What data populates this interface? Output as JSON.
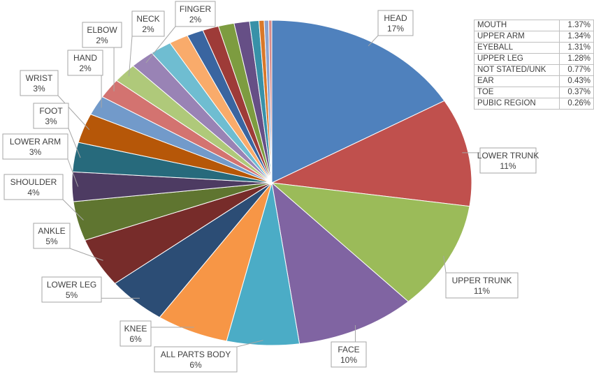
{
  "chart_data": {
    "type": "pie",
    "slices": [
      {
        "label": "HEAD",
        "value": 17,
        "value_text": "17%",
        "color": "#4f81bd"
      },
      {
        "label": "LOWER TRUNK",
        "value": 11,
        "value_text": "11%",
        "color": "#c0504d"
      },
      {
        "label": "UPPER TRUNK",
        "value": 11,
        "value_text": "11%",
        "color": "#9bbb59"
      },
      {
        "label": "FACE",
        "value": 10,
        "value_text": "10%",
        "color": "#8064a2"
      },
      {
        "label": "ALL PARTS BODY",
        "value": 6,
        "value_text": "6%",
        "color": "#4bacc6"
      },
      {
        "label": "KNEE",
        "value": 6,
        "value_text": "6%",
        "color": "#f79646"
      },
      {
        "label": "LOWER LEG",
        "value": 5,
        "value_text": "5%",
        "color": "#2c4d75"
      },
      {
        "label": "ANKLE",
        "value": 5,
        "value_text": "5%",
        "color": "#772c2a"
      },
      {
        "label": "SHOULDER",
        "value": 4,
        "value_text": "4%",
        "color": "#5f7530"
      },
      {
        "label": "LOWER ARM",
        "value": 3,
        "value_text": "3%",
        "color": "#4d3b62"
      },
      {
        "label": "FOOT",
        "value": 3,
        "value_text": "3%",
        "color": "#276a7c"
      },
      {
        "label": "WRIST",
        "value": 3,
        "value_text": "3%",
        "color": "#b65708"
      },
      {
        "label": "HAND",
        "value": 2,
        "value_text": "2%",
        "color": "#729aca"
      },
      {
        "label": "ELBOW",
        "value": 2,
        "value_text": "2%",
        "color": "#d37370"
      },
      {
        "label": "NECK",
        "value": 2,
        "value_text": "2%",
        "color": "#afc97a"
      },
      {
        "label": "FINGER",
        "value": 2,
        "value_text": "2%",
        "color": "#9983b5"
      },
      {
        "label": "",
        "value": 1.8,
        "value_text": "",
        "color": "#6fbdd1"
      },
      {
        "label": "",
        "value": 1.6,
        "value_text": "",
        "color": "#f9ab6b"
      },
      {
        "label": "MOUTH",
        "value": 1.37,
        "value_text": "1.37%",
        "color": "#3a65a0"
      },
      {
        "label": "UPPER ARM",
        "value": 1.34,
        "value_text": "1.34%",
        "color": "#9e3b38"
      },
      {
        "label": "EYEBALL",
        "value": 1.31,
        "value_text": "1.31%",
        "color": "#7d9c40"
      },
      {
        "label": "UPPER LEG",
        "value": 1.28,
        "value_text": "1.28%",
        "color": "#664f86"
      },
      {
        "label": "NOT STATED/UNK",
        "value": 0.77,
        "value_text": "0.77%",
        "color": "#3891a8"
      },
      {
        "label": "EAR",
        "value": 0.43,
        "value_text": "0.43%",
        "color": "#d9782a"
      },
      {
        "label": "TOE",
        "value": 0.37,
        "value_text": "0.37%",
        "color": "#8aa3d1"
      },
      {
        "label": "PUBIC REGION",
        "value": 0.26,
        "value_text": "0.26%",
        "color": "#d98b89"
      }
    ],
    "table": [
      {
        "label": "MOUTH",
        "value_text": "1.37%"
      },
      {
        "label": "UPPER ARM",
        "value_text": "1.34%"
      },
      {
        "label": "EYEBALL",
        "value_text": "1.31%"
      },
      {
        "label": "UPPER LEG",
        "value_text": "1.28%"
      },
      {
        "label": "NOT STATED/UNK",
        "value_text": "0.77%"
      },
      {
        "label": "EAR",
        "value_text": "0.43%"
      },
      {
        "label": "TOE",
        "value_text": "0.37%"
      },
      {
        "label": "PUBIC REGION",
        "value_text": "0.26%"
      }
    ]
  }
}
